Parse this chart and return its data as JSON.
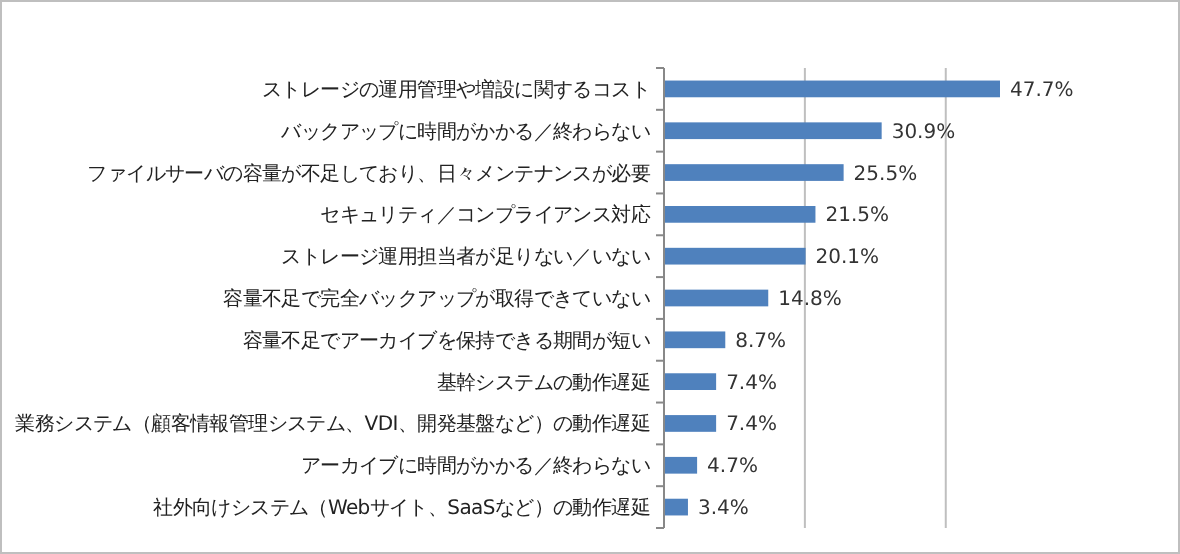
{
  "chart_data": {
    "type": "bar",
    "orientation": "horizontal",
    "categories": [
      "ストレージの運用管理や増設に関するコスト",
      "バックアップに時間がかかる／終わらない",
      "ファイルサーバの容量が不足しており、日々メンテナンスが必要",
      "セキュリティ／コンプライアンス対応",
      "ストレージ運用担当者が足りない／いない",
      "容量不足で完全バックアップが取得できていない",
      "容量不足でアーカイブを保持できる期間が短い",
      "基幹システムの動作遅延",
      "業務システム（顧客情報管理システム、VDI、開発基盤など）の動作遅延",
      "アーカイブに時間がかかる／終わらない",
      "社外向けシステム（Webサイト、SaaSなど）の動作遅延"
    ],
    "values": [
      47.7,
      30.9,
      25.5,
      21.5,
      20.1,
      14.8,
      8.7,
      7.4,
      7.4,
      4.7,
      3.4
    ],
    "value_labels": [
      "47.7%",
      "30.9%",
      "25.5%",
      "21.5%",
      "20.1%",
      "14.8%",
      "8.7%",
      "7.4%",
      "7.4%",
      "4.7%",
      "3.4%"
    ],
    "color": "#4f81bd",
    "ref_lines": [
      {
        "axis": "x",
        "value": 20,
        "color": "#bfbfbf"
      },
      {
        "axis": "x",
        "value": 40,
        "color": "#bfbfbf"
      }
    ],
    "tick_labels": "y"
  }
}
